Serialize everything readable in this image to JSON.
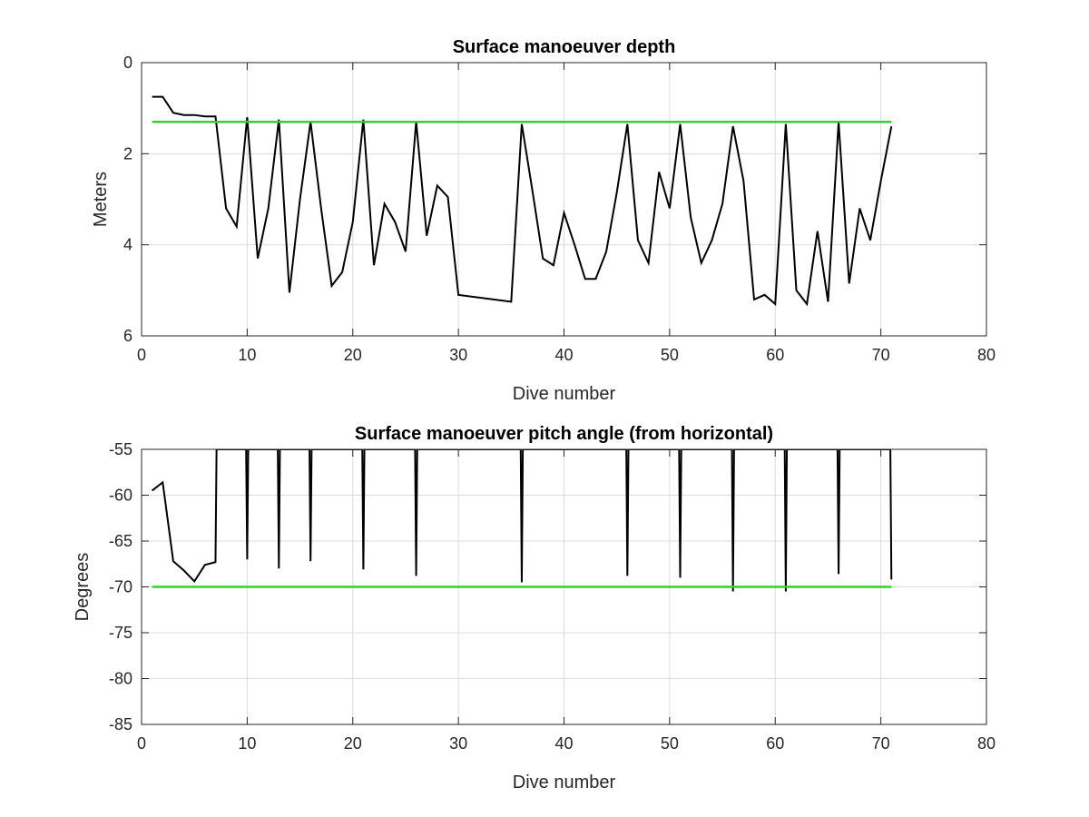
{
  "chart_data": [
    {
      "type": "line",
      "title": "Surface manoeuver depth",
      "xlabel": "Dive number",
      "ylabel": "Meters",
      "xlim": [
        0,
        80
      ],
      "ylim": [
        0,
        6
      ],
      "y_reversed": true,
      "grid": true,
      "xticks": [
        0,
        10,
        20,
        30,
        40,
        50,
        60,
        70,
        80
      ],
      "yticks": [
        0,
        2,
        4,
        6
      ],
      "series": [
        {
          "color": "#000000",
          "x": [
            1,
            2,
            3,
            4,
            5,
            6,
            7,
            8,
            9,
            10,
            11,
            12,
            13,
            14,
            15,
            16,
            17,
            18,
            19,
            20,
            21,
            22,
            23,
            24,
            25,
            26,
            27,
            28,
            29,
            30,
            35,
            36,
            37,
            38,
            39,
            40,
            41,
            42,
            43,
            44,
            45,
            46,
            47,
            48,
            49,
            50,
            51,
            52,
            53,
            54,
            55,
            56,
            57,
            58,
            59,
            60,
            61,
            62,
            63,
            64,
            65,
            66,
            67,
            68,
            69,
            70,
            71
          ],
          "y": [
            0.75,
            0.75,
            1.1,
            1.15,
            1.15,
            1.18,
            1.18,
            3.2,
            3.6,
            1.2,
            4.3,
            3.2,
            1.25,
            5.05,
            3.0,
            1.3,
            3.2,
            4.9,
            4.6,
            3.5,
            1.25,
            4.45,
            3.1,
            3.5,
            4.15,
            1.3,
            3.8,
            2.7,
            2.95,
            5.1,
            5.25,
            1.35,
            2.8,
            4.3,
            4.45,
            3.3,
            4.0,
            4.75,
            4.75,
            4.15,
            2.85,
            1.35,
            3.9,
            4.4,
            2.4,
            3.2,
            1.35,
            3.4,
            4.4,
            3.9,
            3.1,
            1.4,
            2.6,
            5.2,
            5.1,
            5.3,
            1.35,
            5.0,
            5.3,
            3.7,
            5.25,
            1.3,
            4.85,
            3.2,
            3.9,
            2.6,
            1.4
          ]
        },
        {
          "color": "#2fd22f",
          "x": [
            1,
            71
          ],
          "y": [
            1.3,
            1.3
          ]
        }
      ]
    },
    {
      "type": "line",
      "title": "Surface manoeuver pitch angle (from horizontal)",
      "xlabel": "Dive number",
      "ylabel": "Degrees",
      "xlim": [
        0,
        80
      ],
      "ylim": [
        -85,
        -55
      ],
      "grid": true,
      "xticks": [
        0,
        10,
        20,
        30,
        40,
        50,
        60,
        70,
        80
      ],
      "yticks": [
        -85,
        -80,
        -75,
        -70,
        -65,
        -60,
        -55
      ],
      "series": [
        {
          "color": "#000000",
          "x": [
            1,
            2,
            3,
            4,
            5,
            6,
            7,
            7.1,
            9.9,
            10,
            10.1,
            12.9,
            13,
            13.1,
            15.9,
            16,
            16.1,
            20.9,
            21,
            21.1,
            25.9,
            26,
            26.1,
            35.9,
            36,
            36.1,
            45.9,
            46,
            46.1,
            50.9,
            51,
            51.1,
            55.9,
            56,
            56.1,
            60.9,
            61,
            61.1,
            65.9,
            66,
            66.1,
            70.9,
            71
          ],
          "y": [
            -59.5,
            -58.6,
            -67.2,
            -68.2,
            -69.4,
            -67.6,
            -67.3,
            -55,
            -55,
            -67,
            -55,
            -55,
            -68,
            -55,
            -55,
            -67.2,
            -55,
            -55,
            -68.1,
            -55,
            -55,
            -68.8,
            -55,
            -55,
            -69.5,
            -55,
            -55,
            -68.8,
            -55,
            -55,
            -69,
            -55,
            -55,
            -70.5,
            -55,
            -55,
            -70.5,
            -55,
            -55,
            -68.6,
            -55,
            -55,
            -69.2
          ]
        },
        {
          "color": "#2fd22f",
          "x": [
            1,
            71
          ],
          "y": [
            -70,
            -70
          ]
        }
      ]
    }
  ]
}
